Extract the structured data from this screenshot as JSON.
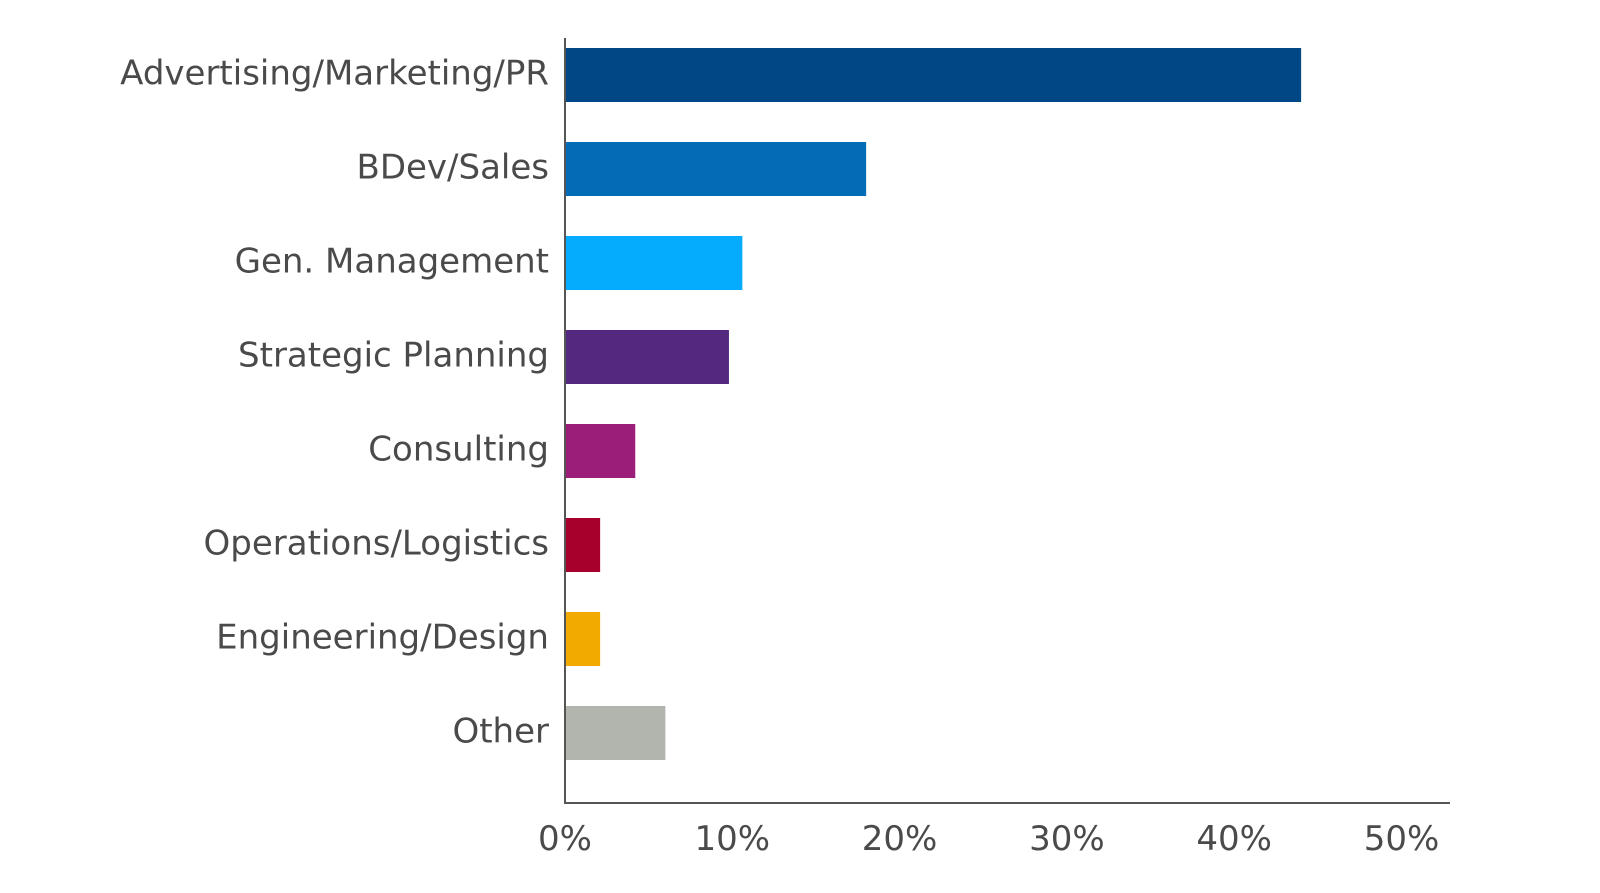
{
  "chart_data": {
    "type": "bar",
    "orientation": "horizontal",
    "categories": [
      "Advertising/Marketing/PR",
      "BDev/Sales",
      "Gen. Management",
      "Strategic Planning",
      "Consulting",
      "Operations/Logistics",
      "Engineering/Design",
      "Other"
    ],
    "values": [
      44,
      18,
      10.6,
      9.8,
      4.2,
      2.1,
      2.1,
      6
    ],
    "colors": [
      "#004785",
      "#026cb6",
      "#05abfc",
      "#53287e",
      "#9b1f78",
      "#a8002c",
      "#f1ab00",
      "#b2b5ad"
    ],
    "xlim": [
      0,
      53
    ],
    "xticks": [
      0,
      10,
      20,
      30,
      40,
      50
    ],
    "xtick_labels": [
      "0%",
      "10%",
      "20%",
      "30%",
      "40%",
      "50%"
    ],
    "title": "",
    "xlabel": "",
    "ylabel": "",
    "grid": false,
    "legend": "none"
  }
}
